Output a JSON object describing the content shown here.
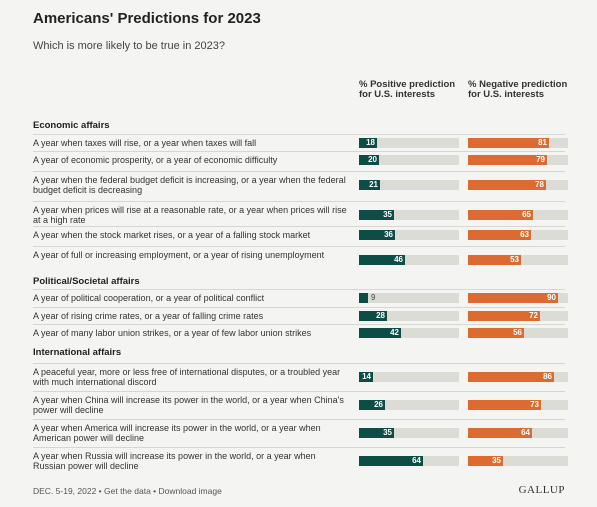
{
  "header": {
    "title": "Americans' Predictions for 2023",
    "subtitle": "Which is more likely to be true in 2023?"
  },
  "columns": {
    "positive": "% Positive prediction for U.S. interests",
    "negative": "% Negative prediction for U.S. interests"
  },
  "colors": {
    "positive": "#0e4d45",
    "negative": "#dc6b31",
    "track": "#dcdcd6"
  },
  "chart_data": {
    "type": "bar",
    "xlim": [
      0,
      100
    ],
    "sections": [
      {
        "name": "Economic affairs",
        "items": [
          {
            "label": "A year when taxes will rise, or a year when taxes will fall",
            "positive": 18,
            "negative": 81
          },
          {
            "label": "A year of economic prosperity, or a year of economic difficulty",
            "positive": 20,
            "negative": 79
          },
          {
            "label": "A year when the federal budget deficit is increasing, or a year when the federal budget deficit is decreasing",
            "positive": 21,
            "negative": 78
          },
          {
            "label": "A year when prices will rise at a reasonable rate, or a year when prices will rise at a high rate",
            "positive": 35,
            "negative": 65
          },
          {
            "label": "A year when the stock market rises, or a year of a falling stock market",
            "positive": 36,
            "negative": 63
          },
          {
            "label": "A year of full or increasing employment, or a year of rising unemployment",
            "positive": 46,
            "negative": 53
          }
        ]
      },
      {
        "name": "Political/Societal affairs",
        "items": [
          {
            "label": "A year of political cooperation, or a year of political conflict",
            "positive": 9,
            "negative": 90
          },
          {
            "label": "A year of rising crime rates, or a year of falling crime rates",
            "positive": 28,
            "negative": 72
          },
          {
            "label": "A year of many labor union strikes, or a year of few labor union strikes",
            "positive": 42,
            "negative": 56
          }
        ]
      },
      {
        "name": "International affairs",
        "items": [
          {
            "label": "A peaceful year, more or less free of international disputes, or a troubled year with much international discord",
            "positive": 14,
            "negative": 86
          },
          {
            "label": "A year when China will increase its power in the world, or a year when China's power will decline",
            "positive": 26,
            "negative": 73
          },
          {
            "label": "A year when America will increase its power in the world, or a year when American power will decline",
            "positive": 35,
            "negative": 64
          },
          {
            "label": "A year when Russia will increase its power in the world, or a year when Russian power will decline",
            "positive": 64,
            "negative": 35
          }
        ]
      }
    ]
  },
  "footer": {
    "text": "DEC. 5-19, 2022 • Get the data • Download image",
    "logo": "GALLUP"
  }
}
